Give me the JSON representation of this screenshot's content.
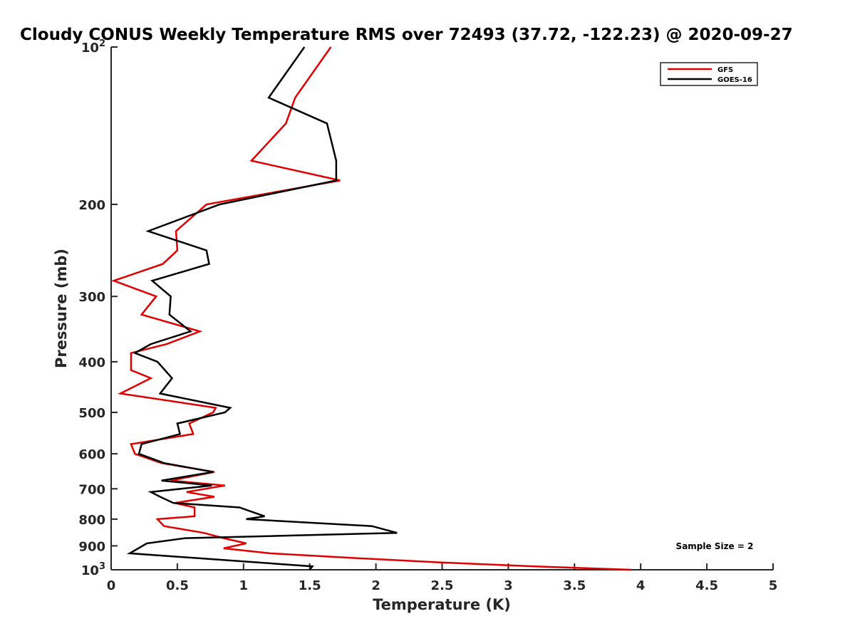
{
  "chart_data": {
    "type": "line",
    "title": "Cloudy CONUS Weekly Temperature RMS over 72493 (37.72, -122.23) @ 2020-09-27",
    "xlabel": "Temperature (K)",
    "ylabel": "Pressure (mb)",
    "xlim": [
      0,
      5
    ],
    "ylim": [
      100,
      1000
    ],
    "y_scale": "log",
    "y_reversed": true,
    "x_ticks": [
      "0",
      "0.5",
      "1",
      "1.5",
      "2",
      "2.5",
      "3",
      "3.5",
      "4",
      "4.5",
      "5"
    ],
    "y_ticks": [
      {
        "value": 100,
        "base": "10",
        "exp": "2"
      },
      {
        "value": 200,
        "label": "200"
      },
      {
        "value": 300,
        "label": "300"
      },
      {
        "value": 400,
        "label": "400"
      },
      {
        "value": 500,
        "label": "500"
      },
      {
        "value": 600,
        "label": "600"
      },
      {
        "value": 700,
        "label": "700"
      },
      {
        "value": 800,
        "label": "800"
      },
      {
        "value": 900,
        "label": "900"
      },
      {
        "value": 1000,
        "base": "10",
        "exp": "3"
      }
    ],
    "grid": false,
    "legend_position": "top-right",
    "annotation": "Sample Size = 2",
    "series": [
      {
        "name": "GFS",
        "color": "#e00000",
        "points": [
          [
            1.66,
            100
          ],
          [
            1.39,
            125
          ],
          [
            1.32,
            140
          ],
          [
            1.06,
            165
          ],
          [
            1.73,
            180
          ],
          [
            0.72,
            200
          ],
          [
            0.49,
            225
          ],
          [
            0.5,
            245
          ],
          [
            0.39,
            260
          ],
          [
            0.02,
            280
          ],
          [
            0.34,
            300
          ],
          [
            0.23,
            325
          ],
          [
            0.67,
            350
          ],
          [
            0.42,
            370
          ],
          [
            0.15,
            385
          ],
          [
            0.15,
            400
          ],
          [
            0.15,
            415
          ],
          [
            0.3,
            430
          ],
          [
            0.07,
            460
          ],
          [
            0.79,
            490
          ],
          [
            0.77,
            500
          ],
          [
            0.59,
            525
          ],
          [
            0.62,
            550
          ],
          [
            0.15,
            575
          ],
          [
            0.18,
            600
          ],
          [
            0.38,
            625
          ],
          [
            0.78,
            650
          ],
          [
            0.45,
            675
          ],
          [
            0.86,
            690
          ],
          [
            0.57,
            710
          ],
          [
            0.78,
            725
          ],
          [
            0.48,
            745
          ],
          [
            0.63,
            760
          ],
          [
            0.63,
            790
          ],
          [
            0.35,
            800
          ],
          [
            0.4,
            825
          ],
          [
            0.7,
            850
          ],
          [
            0.85,
            870
          ],
          [
            1.02,
            890
          ],
          [
            0.85,
            910
          ],
          [
            1.2,
            930
          ],
          [
            1.85,
            950
          ],
          [
            2.48,
            968
          ],
          [
            3.2,
            985
          ],
          [
            3.93,
            1000
          ]
        ]
      },
      {
        "name": "GOES-16",
        "color": "#000000",
        "points": [
          [
            1.46,
            100
          ],
          [
            1.19,
            125
          ],
          [
            1.63,
            140
          ],
          [
            1.7,
            165
          ],
          [
            1.7,
            180
          ],
          [
            0.82,
            200
          ],
          [
            0.28,
            225
          ],
          [
            0.72,
            245
          ],
          [
            0.74,
            260
          ],
          [
            0.31,
            280
          ],
          [
            0.45,
            300
          ],
          [
            0.44,
            325
          ],
          [
            0.6,
            350
          ],
          [
            0.3,
            370
          ],
          [
            0.18,
            385
          ],
          [
            0.35,
            400
          ],
          [
            0.46,
            430
          ],
          [
            0.37,
            460
          ],
          [
            0.9,
            490
          ],
          [
            0.86,
            500
          ],
          [
            0.5,
            525
          ],
          [
            0.52,
            550
          ],
          [
            0.23,
            575
          ],
          [
            0.21,
            600
          ],
          [
            0.4,
            625
          ],
          [
            0.77,
            650
          ],
          [
            0.38,
            675
          ],
          [
            0.76,
            690
          ],
          [
            0.3,
            710
          ],
          [
            0.37,
            725
          ],
          [
            0.47,
            745
          ],
          [
            0.97,
            760
          ],
          [
            1.16,
            790
          ],
          [
            1.02,
            800
          ],
          [
            1.97,
            825
          ],
          [
            2.16,
            850
          ],
          [
            0.56,
            870
          ],
          [
            0.27,
            890
          ],
          [
            0.14,
            930
          ],
          [
            1.52,
            985
          ],
          [
            1.5,
            1000
          ]
        ]
      }
    ]
  }
}
